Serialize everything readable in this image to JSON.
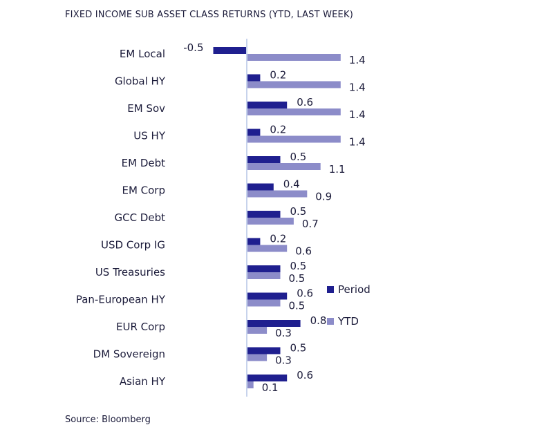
{
  "title": "FIXED INCOME SUB ASSET CLASS RETURNS (YTD, LAST WEEK)",
  "source": "Source: Bloomberg",
  "colors": {
    "period": "#1f1f8f",
    "ytd": "#8c8cc9",
    "axis": "#c7d3ec"
  },
  "chart_data": {
    "type": "bar",
    "orientation": "horizontal",
    "categories": [
      "EM Local",
      "Global HY",
      "EM Sov",
      "US HY",
      "EM Debt",
      "EM Corp",
      "GCC Debt",
      "USD Corp IG",
      "US Treasuries",
      "Pan-European HY",
      "EUR Corp",
      "DM Sovereign",
      "Asian HY"
    ],
    "series": [
      {
        "name": "Period",
        "values": [
          -0.5,
          0.2,
          0.6,
          0.2,
          0.5,
          0.4,
          0.5,
          0.2,
          0.5,
          0.6,
          0.8,
          0.5,
          0.6
        ]
      },
      {
        "name": "YTD",
        "values": [
          1.4,
          1.4,
          1.4,
          1.4,
          1.1,
          0.9,
          0.7,
          0.6,
          0.5,
          0.5,
          0.3,
          0.3,
          0.1
        ]
      }
    ],
    "legend": "right",
    "grid": false
  }
}
